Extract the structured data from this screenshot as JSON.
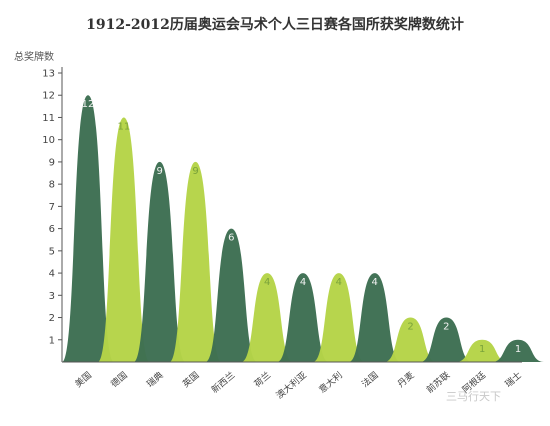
{
  "chart_data": {
    "type": "area",
    "title": "1912-2012历届奥运会马术个人三日赛各国所获奖牌数统计",
    "ylabel": "总奖牌数",
    "xlabel": "",
    "ylim": [
      0,
      13
    ],
    "yticks": [
      1,
      2,
      3,
      4,
      5,
      6,
      7,
      8,
      9,
      10,
      11,
      12,
      13
    ],
    "categories": [
      "美国",
      "德国",
      "瑞典",
      "英国",
      "新西兰",
      "荷兰",
      "澳大利亚",
      "意大利",
      "法国",
      "丹麦",
      "前苏联",
      "阿根廷",
      "瑞士"
    ],
    "values": [
      12,
      11,
      9,
      9,
      6,
      4,
      4,
      4,
      4,
      2,
      2,
      1,
      1
    ],
    "label_colors": [
      "#f2f2f2",
      "#7aa33a",
      "#f2f2f2",
      "#7aa33a",
      "#f2f2f2",
      "#7aa33a",
      "#f2f2f2",
      "#7aa33a",
      "#f2f2f2",
      "#7aa33a",
      "#f2f2f2",
      "#7aa33a",
      "#f2f2f2"
    ],
    "colors": [
      "#3d6e52",
      "#b5d447",
      "#3d6e52",
      "#b5d447",
      "#3d6e52",
      "#b5d447",
      "#3d6e52",
      "#b5d447",
      "#3d6e52",
      "#b5d447",
      "#3d6e52",
      "#b5d447",
      "#3d6e52"
    ],
    "grid": false,
    "legend": "none"
  },
  "watermark": "三马行天下"
}
